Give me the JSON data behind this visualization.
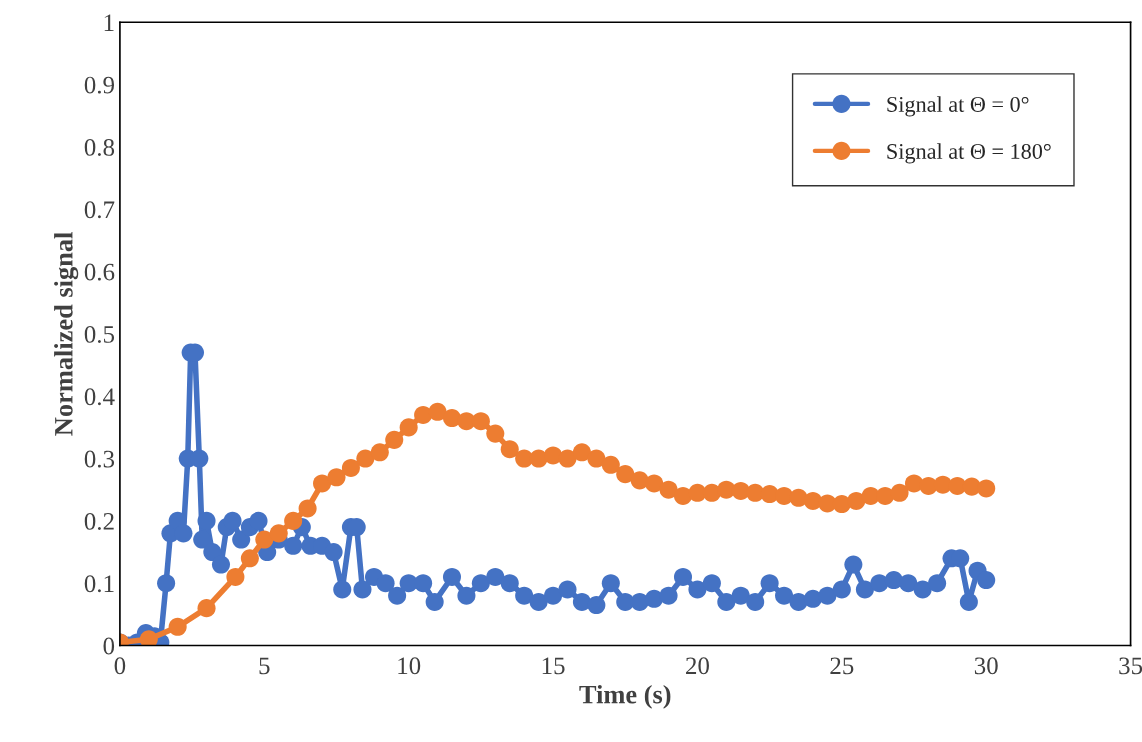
{
  "chart_data": {
    "type": "line",
    "xlabel": "Time (s)",
    "ylabel": "Normalized signal",
    "xlim": [
      0,
      35
    ],
    "xticks": [
      0,
      5,
      10,
      15,
      20,
      25,
      30,
      35
    ],
    "ylim": [
      0,
      1
    ],
    "yticks": [
      0,
      0.1,
      0.2,
      0.3,
      0.4,
      0.5,
      0.6,
      0.7,
      0.8,
      0.9,
      1
    ],
    "grid": false,
    "legend": "top right",
    "marker": "circle",
    "line_style": "solid",
    "series": [
      {
        "name": "Signal at Θ = 0°",
        "color": "#4472c4",
        "x": [
          0,
          0.3,
          0.6,
          0.9,
          1.2,
          1.4,
          1.6,
          1.75,
          2.0,
          2.2,
          2.35,
          2.45,
          2.6,
          2.75,
          2.85,
          3.0,
          3.2,
          3.5,
          3.7,
          3.9,
          4.2,
          4.5,
          4.8,
          5.1,
          5.5,
          6.0,
          6.3,
          6.6,
          7.0,
          7.4,
          7.7,
          8.0,
          8.2,
          8.4,
          8.8,
          9.2,
          9.6,
          10.0,
          10.5,
          10.9,
          11.5,
          12.0,
          12.5,
          13.0,
          13.5,
          14.0,
          14.5,
          15.0,
          15.5,
          16.0,
          16.5,
          17.0,
          17.5,
          18.0,
          18.5,
          19.0,
          19.5,
          20.0,
          20.5,
          21.0,
          21.5,
          22.0,
          22.5,
          23.0,
          23.5,
          24.0,
          24.5,
          25.0,
          25.4,
          25.8,
          26.3,
          26.8,
          27.3,
          27.8,
          28.3,
          28.8,
          29.1,
          29.4,
          29.7,
          30.0
        ],
        "values": [
          0.005,
          0.0,
          0.005,
          0.02,
          0.015,
          0.005,
          0.1,
          0.18,
          0.2,
          0.18,
          0.3,
          0.47,
          0.47,
          0.3,
          0.17,
          0.2,
          0.15,
          0.13,
          0.19,
          0.2,
          0.17,
          0.19,
          0.2,
          0.15,
          0.17,
          0.16,
          0.19,
          0.16,
          0.16,
          0.15,
          0.09,
          0.19,
          0.19,
          0.09,
          0.11,
          0.1,
          0.08,
          0.1,
          0.1,
          0.07,
          0.11,
          0.08,
          0.1,
          0.11,
          0.1,
          0.08,
          0.07,
          0.08,
          0.09,
          0.07,
          0.065,
          0.1,
          0.07,
          0.07,
          0.075,
          0.08,
          0.11,
          0.09,
          0.1,
          0.07,
          0.08,
          0.07,
          0.1,
          0.08,
          0.07,
          0.075,
          0.08,
          0.09,
          0.13,
          0.09,
          0.1,
          0.105,
          0.1,
          0.09,
          0.1,
          0.14,
          0.14,
          0.07,
          0.12,
          0.105
        ]
      },
      {
        "name": "Signal at Θ = 180°",
        "color": "#ed7d31",
        "x": [
          0,
          1,
          2,
          3,
          4,
          4.5,
          5,
          5.5,
          6,
          6.5,
          7,
          7.5,
          8,
          8.5,
          9,
          9.5,
          10,
          10.5,
          11,
          11.5,
          12,
          12.5,
          13,
          13.5,
          14,
          14.5,
          15,
          15.5,
          16,
          16.5,
          17,
          17.5,
          18,
          18.5,
          19,
          19.5,
          20,
          20.5,
          21,
          21.5,
          22,
          22.5,
          23,
          23.5,
          24,
          24.5,
          25,
          25.5,
          26,
          26.5,
          27,
          27.5,
          28,
          28.5,
          29,
          29.5,
          30
        ],
        "values": [
          0.005,
          0.01,
          0.03,
          0.06,
          0.11,
          0.14,
          0.17,
          0.18,
          0.2,
          0.22,
          0.26,
          0.27,
          0.285,
          0.3,
          0.31,
          0.33,
          0.35,
          0.37,
          0.375,
          0.365,
          0.36,
          0.36,
          0.34,
          0.315,
          0.3,
          0.3,
          0.305,
          0.3,
          0.31,
          0.3,
          0.29,
          0.275,
          0.265,
          0.26,
          0.25,
          0.24,
          0.245,
          0.245,
          0.25,
          0.248,
          0.245,
          0.243,
          0.24,
          0.237,
          0.232,
          0.228,
          0.227,
          0.232,
          0.24,
          0.24,
          0.245,
          0.26,
          0.256,
          0.258,
          0.256,
          0.255,
          0.252
        ]
      }
    ]
  }
}
